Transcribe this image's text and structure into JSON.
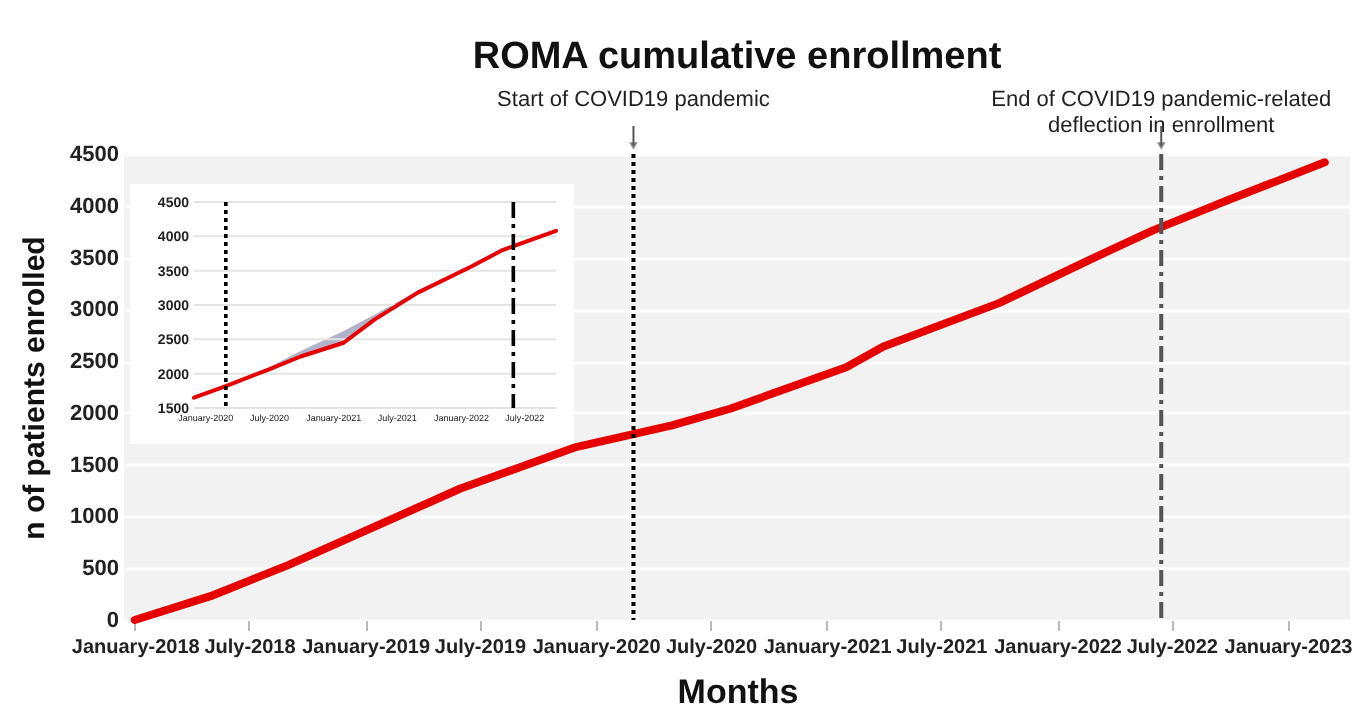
{
  "chart_data": [
    {
      "type": "line",
      "title": "ROMA cumulative enrollment",
      "xlabel": "Months",
      "ylabel": "n of patients enrolled",
      "x": [
        "2018-01",
        "2018-05",
        "2018-09",
        "2019-01",
        "2019-06",
        "2019-09",
        "2019-12",
        "2020-05",
        "2020-08",
        "2021-02",
        "2021-04",
        "2021-10",
        "2022-03",
        "2022-06",
        "2022-10",
        "2023-03"
      ],
      "series": [
        {
          "color": "#e60000",
          "values": [
            0,
            230,
            530,
            860,
            1270,
            1470,
            1670,
            1880,
            2040,
            2440,
            2640,
            3060,
            3500,
            3760,
            4060,
            4420
          ]
        }
      ],
      "xlim": [
        "2017-12-15",
        "2023-04-10"
      ],
      "xticks": [
        {
          "value": "2018-01",
          "label": "January-2018"
        },
        {
          "value": "2018-07",
          "label": "July-2018"
        },
        {
          "value": "2019-01",
          "label": "January-2019"
        },
        {
          "value": "2019-07",
          "label": "July-2019"
        },
        {
          "value": "2020-01",
          "label": "January-2020"
        },
        {
          "value": "2020-07",
          "label": "July-2020"
        },
        {
          "value": "2021-01",
          "label": "January-2021"
        },
        {
          "value": "2021-07",
          "label": "July-2021"
        },
        {
          "value": "2022-01",
          "label": "January-2022"
        },
        {
          "value": "2022-07",
          "label": "July-2022"
        },
        {
          "value": "2023-01",
          "label": "January-2023"
        }
      ],
      "ylim": [
        0,
        4500
      ],
      "yticks": [
        0,
        500,
        1000,
        1500,
        2000,
        2500,
        3000,
        3500,
        4000,
        4500
      ],
      "grid": "y",
      "ref_lines": [
        {
          "axis": "x",
          "value": "2020-03",
          "label": "Start of COVID19 pandemic",
          "color": "#000000",
          "line_style": "dotted"
        },
        {
          "axis": "x",
          "value": "2022-06-15",
          "label": "End of COVID19 pandemic-related\ndeflection in enrollment",
          "color": "#555555",
          "line_style": "dashed"
        }
      ]
    },
    {
      "type": "line",
      "x": [
        "2019-12",
        "2020-03",
        "2020-07",
        "2020-10",
        "2021-02",
        "2021-05",
        "2021-09",
        "2022-02",
        "2022-05",
        "2022-10"
      ],
      "series": [
        {
          "color": "#e60000",
          "values": [
            1650,
            1820,
            2060,
            2250,
            2450,
            2790,
            3180,
            3560,
            3800,
            4080
          ],
          "lower": [
            null,
            1820,
            2060,
            2255,
            2450,
            2790,
            3175,
            3560,
            3800,
            null
          ],
          "upper": [
            null,
            1820,
            2090,
            2330,
            2620,
            2860,
            3210,
            3580,
            3800,
            null
          ]
        }
      ],
      "xlim": [
        "2019-12",
        "2022-10"
      ],
      "xticks": [
        {
          "value": "2020-01",
          "label": "January-2020"
        },
        {
          "value": "2020-07",
          "label": "July-2020"
        },
        {
          "value": "2021-01",
          "label": "January-2021"
        },
        {
          "value": "2021-07",
          "label": "July-2021"
        },
        {
          "value": "2022-01",
          "label": "January-2022"
        },
        {
          "value": "2022-07",
          "label": "July-2022"
        }
      ],
      "ylim": [
        1500,
        4500
      ],
      "yticks": [
        1500,
        2000,
        2500,
        3000,
        3500,
        4000,
        4500
      ],
      "grid": "y",
      "ref_lines": [
        {
          "axis": "x",
          "value": "2020-03",
          "color": "#000000",
          "line_style": "dotted"
        },
        {
          "axis": "x",
          "value": "2022-06",
          "color": "#000000",
          "line_style": "dashed"
        }
      ]
    }
  ]
}
